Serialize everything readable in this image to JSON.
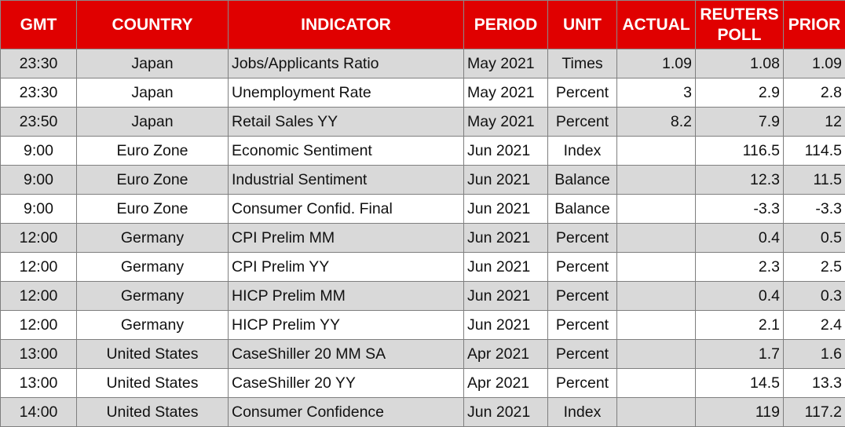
{
  "table": {
    "header": [
      "GMT",
      "COUNTRY",
      "INDICATOR",
      "PERIOD",
      "UNIT",
      "ACTUAL",
      "REUTERS POLL",
      "PRIOR"
    ],
    "rows": [
      [
        "23:30",
        "Japan",
        "Jobs/Applicants Ratio",
        "May 2021",
        "Times",
        "1.09",
        "1.08",
        "1.09"
      ],
      [
        "23:30",
        "Japan",
        "Unemployment Rate",
        "May 2021",
        "Percent",
        "3",
        "2.9",
        "2.8"
      ],
      [
        "23:50",
        "Japan",
        "Retail Sales YY",
        "May 2021",
        "Percent",
        "8.2",
        "7.9",
        "12"
      ],
      [
        "9:00",
        "Euro Zone",
        "Economic Sentiment",
        "Jun 2021",
        "Index",
        null,
        "116.5",
        "114.5"
      ],
      [
        "9:00",
        "Euro Zone",
        "Industrial Sentiment",
        "Jun 2021",
        "Balance",
        null,
        "12.3",
        "11.5"
      ],
      [
        "9:00",
        "Euro Zone",
        "Consumer Confid. Final",
        "Jun 2021",
        "Balance",
        null,
        "-3.3",
        "-3.3"
      ],
      [
        "12:00",
        "Germany",
        "CPI Prelim MM",
        "Jun 2021",
        "Percent",
        null,
        "0.4",
        "0.5"
      ],
      [
        "12:00",
        "Germany",
        "CPI Prelim YY",
        "Jun 2021",
        "Percent",
        null,
        "2.3",
        "2.5"
      ],
      [
        "12:00",
        "Germany",
        "HICP Prelim MM",
        "Jun 2021",
        "Percent",
        null,
        "0.4",
        "0.3"
      ],
      [
        "12:00",
        "Germany",
        "HICP Prelim YY",
        "Jun 2021",
        "Percent",
        null,
        "2.1",
        "2.4"
      ],
      [
        "13:00",
        "United States",
        "CaseShiller 20 MM SA",
        "Apr 2021",
        "Percent",
        null,
        "1.7",
        "1.6"
      ],
      [
        "13:00",
        "United States",
        "CaseShiller 20 YY",
        "Apr 2021",
        "Percent",
        null,
        "14.5",
        "13.3"
      ],
      [
        "14:00",
        "United States",
        "Consumer Confidence",
        "Jun 2021",
        "Index",
        null,
        "119",
        "117.2"
      ]
    ]
  }
}
